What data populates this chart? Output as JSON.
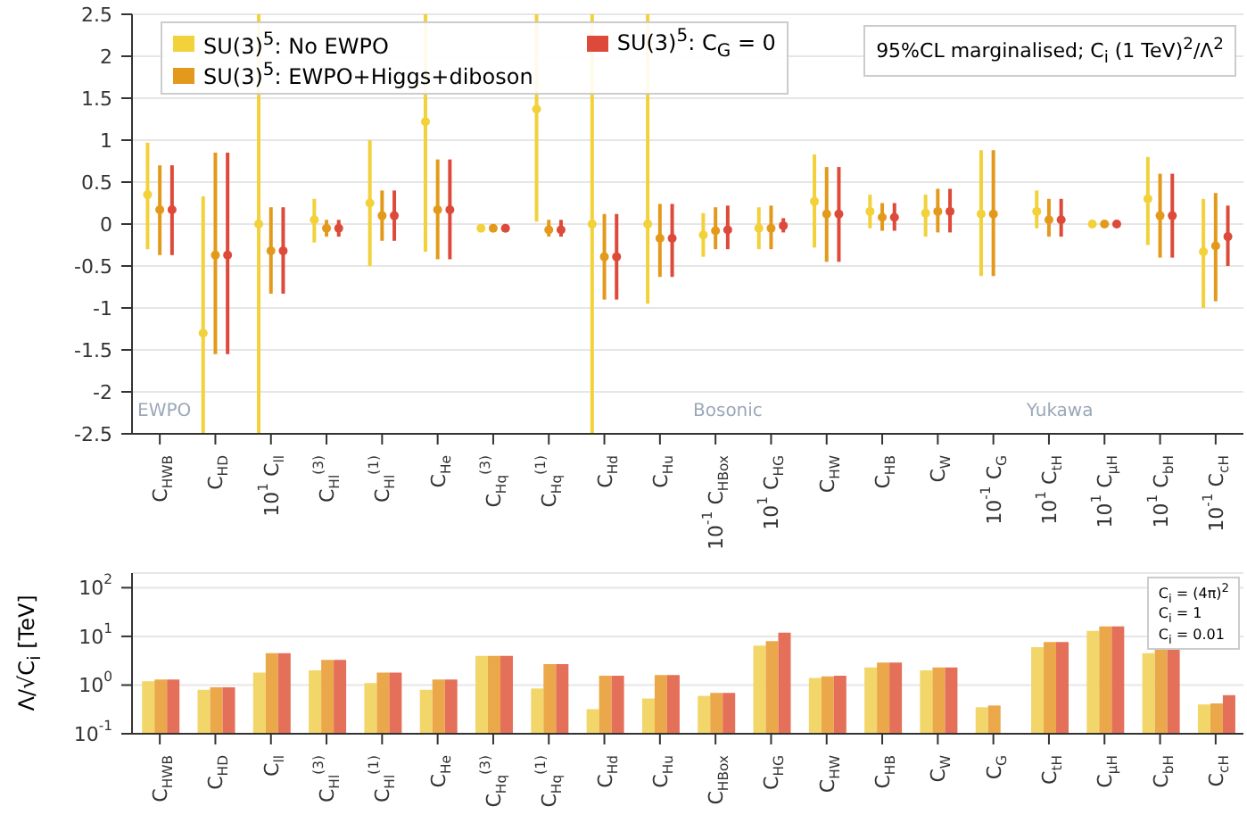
{
  "chart_data": [
    {
      "type": "scatter",
      "categories": [
        "C$_{HWB}$",
        "C$_{HD}$",
        "10$^{1}$ C$_{ll}$",
        "C$_{Hl}$$^{(3)}$",
        "C$_{Hl}$$^{(1)}$",
        "C$_{He}$",
        "C$_{Hq}$$^{(3)}$",
        "C$_{Hq}$$^{(1)}$",
        "C$_{Hd}$",
        "C$_{Hu}$",
        "10$^{-1}$ C$_{HBox}$",
        "10$^{1}$ C$_{HG}$",
        "C$_{HW}$",
        "C$_{HB}$",
        "C$_{W}$",
        "10$^{-1}$ C$_{G}$",
        "10$^{1}$ C$_{tH}$",
        "10$^{1}$ C$_{μH}$",
        "10$^{1}$ C$_{bH}$",
        "10$^{-1}$ C$_{cH}$"
      ],
      "series": [
        {
          "name": "SU(3)$^{5}$: No EWPO",
          "color": "#f2d13a",
          "values": [
            0.35,
            -1.3,
            0.0,
            0.05,
            0.25,
            1.22,
            -0.05,
            1.37,
            0.0,
            0.0,
            -0.13,
            -0.05,
            0.27,
            0.15,
            0.13,
            0.12,
            0.15,
            0.0,
            0.3,
            -0.33
          ],
          "errors": [
            [
              -0.3,
              0.97
            ],
            [
              -2.5,
              0.33
            ],
            [
              -2.5,
              2.5
            ],
            [
              -0.22,
              0.3
            ],
            [
              -0.5,
              1.0
            ],
            [
              -0.33,
              2.5
            ],
            [
              -0.08,
              -0.02
            ],
            [
              0.03,
              2.5
            ],
            [
              -2.5,
              2.5
            ],
            [
              -0.95,
              2.5
            ],
            [
              -0.39,
              0.13
            ],
            [
              -0.3,
              0.2
            ],
            [
              -0.28,
              0.83
            ],
            [
              -0.05,
              0.35
            ],
            [
              -0.15,
              0.35
            ],
            [
              -0.62,
              0.88
            ],
            [
              -0.05,
              0.4
            ],
            [
              -0.03,
              0.03
            ],
            [
              -0.25,
              0.8
            ],
            [
              -1.0,
              0.3
            ]
          ]
        },
        {
          "name": "SU(3)$^{5}$: EWPO+Higgs+diboson",
          "color": "#e39a1c",
          "values": [
            0.17,
            -0.37,
            -0.32,
            -0.05,
            0.1,
            0.17,
            -0.05,
            -0.07,
            -0.39,
            -0.17,
            -0.08,
            -0.05,
            0.12,
            0.08,
            0.15,
            0.12,
            0.05,
            0.0,
            0.1,
            -0.26
          ],
          "errors": [
            [
              -0.37,
              0.7
            ],
            [
              -1.55,
              0.85
            ],
            [
              -0.83,
              0.2
            ],
            [
              -0.15,
              0.05
            ],
            [
              -0.2,
              0.4
            ],
            [
              -0.42,
              0.77
            ],
            [
              -0.08,
              -0.02
            ],
            [
              -0.15,
              0.05
            ],
            [
              -0.9,
              0.12
            ],
            [
              -0.63,
              0.24
            ],
            [
              -0.3,
              0.2
            ],
            [
              -0.3,
              0.22
            ],
            [
              -0.45,
              0.68
            ],
            [
              -0.08,
              0.25
            ],
            [
              -0.1,
              0.42
            ],
            [
              -0.62,
              0.88
            ],
            [
              -0.15,
              0.3
            ],
            [
              -0.03,
              0.03
            ],
            [
              -0.4,
              0.6
            ],
            [
              -0.92,
              0.37
            ]
          ]
        },
        {
          "name": "SU(3)$^{5}$: C$_{G}$ = 0",
          "color": "#dd4a3a",
          "values": [
            0.17,
            -0.37,
            -0.32,
            -0.05,
            0.1,
            0.17,
            -0.05,
            -0.07,
            -0.39,
            -0.17,
            -0.07,
            -0.02,
            0.12,
            0.08,
            0.15,
            null,
            0.05,
            0.0,
            0.1,
            -0.15
          ],
          "errors": [
            [
              -0.37,
              0.7
            ],
            [
              -1.55,
              0.85
            ],
            [
              -0.83,
              0.2
            ],
            [
              -0.15,
              0.05
            ],
            [
              -0.2,
              0.4
            ],
            [
              -0.42,
              0.77
            ],
            [
              -0.08,
              -0.02
            ],
            [
              -0.15,
              0.05
            ],
            [
              -0.9,
              0.12
            ],
            [
              -0.63,
              0.24
            ],
            [
              -0.3,
              0.22
            ],
            [
              -0.1,
              0.07
            ],
            [
              -0.45,
              0.68
            ],
            [
              -0.08,
              0.25
            ],
            [
              -0.1,
              0.42
            ],
            null,
            [
              -0.15,
              0.3
            ],
            [
              -0.03,
              0.03
            ],
            [
              -0.4,
              0.6
            ],
            [
              -0.5,
              0.22
            ]
          ]
        }
      ],
      "ylim": [
        -2.5,
        2.5
      ],
      "yticks": [
        -2.5,
        -2.0,
        -1.5,
        -1.0,
        -0.5,
        0.0,
        0.5,
        1.0,
        1.5,
        2.0,
        2.5
      ],
      "grid": "y",
      "legend": "top left",
      "marker": "circle",
      "annotations": [
        "95%CL marginalised; C$_{i}$ (1 TeV)$^{2}$/Λ$^{2}$",
        "EWPO",
        "Bosonic",
        "Yukawa"
      ]
    },
    {
      "type": "bar",
      "categories": [
        "C$_{HWB}$",
        "C$_{HD}$",
        "C$_{ll}$",
        "C$_{Hl}$$^{(3)}$",
        "C$_{Hl}$$^{(1)}$",
        "C$_{He}$",
        "C$_{Hq}$$^{(3)}$",
        "C$_{Hq}$$^{(1)}$",
        "C$_{Hd}$",
        "C$_{Hu}$",
        "C$_{HBox}$",
        "C$_{HG}$",
        "C$_{HW}$",
        "C$_{HB}$",
        "C$_{W}$",
        "C$_{G}$",
        "C$_{tH}$",
        "C$_{μH}$",
        "C$_{bH}$",
        "C$_{cH}$"
      ],
      "ylabel": "Λ/√C$_{i}$ [TeV]",
      "series": [
        {
          "color": "#f2d66a",
          "values": [
            1.2,
            0.8,
            1.8,
            2,
            1.1,
            0.8,
            4,
            0.85,
            0.32,
            0.53,
            0.6,
            6.5,
            1.4,
            2.3,
            2.0,
            0.35,
            6,
            13,
            4.5,
            0.4
          ]
        },
        {
          "color": "#eaa84a",
          "values": [
            1.3,
            0.9,
            4.5,
            3.3,
            1.8,
            1.3,
            4,
            2.7,
            1.55,
            1.6,
            0.69,
            8,
            1.5,
            2.9,
            2.3,
            0.38,
            7.7,
            16,
            5.5,
            0.42
          ]
        },
        {
          "color": "#e4705a",
          "values": [
            1.3,
            0.9,
            4.5,
            3.3,
            1.8,
            1.3,
            4,
            2.7,
            1.55,
            1.6,
            0.69,
            12,
            1.55,
            2.9,
            2.3,
            null,
            7.7,
            16,
            5.5,
            0.62
          ]
        }
      ],
      "log": true,
      "ylim": [
        0.1,
        200
      ],
      "yticks": [
        {
          "value": 0.1,
          "label": "10$^{-1}$"
        },
        {
          "value": 1,
          "label": "10$^{0}$"
        },
        {
          "value": 10,
          "label": "10$^{1}$"
        },
        {
          "value": 100,
          "label": "10$^{2}$"
        }
      ],
      "grid": "y",
      "annotations": [
        "C$_{i}$ = (4π)$^{2}$",
        "C$_{i}$ = 1",
        "C$_{i}$ = 0.01"
      ]
    }
  ]
}
